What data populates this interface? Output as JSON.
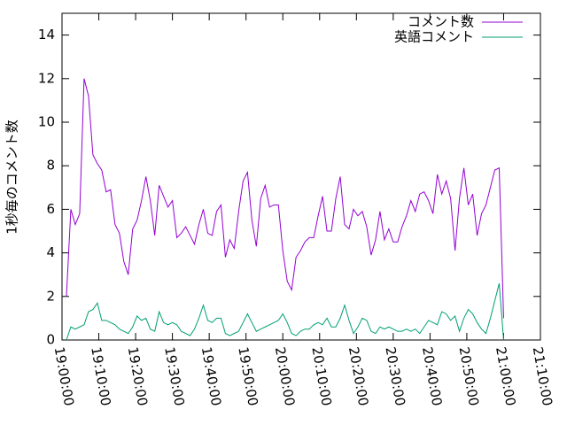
{
  "chart_data": {
    "type": "line",
    "ylabel": "1秒毎のコメント数",
    "x": [
      "19:01:12",
      "19:02:24",
      "19:03:36",
      "19:04:48",
      "19:06:00",
      "19:07:12",
      "19:08:24",
      "19:09:36",
      "19:10:48",
      "19:12:00",
      "19:13:12",
      "19:14:24",
      "19:15:36",
      "19:16:48",
      "19:18:00",
      "19:19:12",
      "19:20:24",
      "19:21:36",
      "19:22:48",
      "19:24:00",
      "19:25:12",
      "19:26:24",
      "19:27:36",
      "19:28:48",
      "19:30:00",
      "19:31:12",
      "19:32:24",
      "19:33:36",
      "19:34:48",
      "19:36:00",
      "19:37:12",
      "19:38:24",
      "19:39:36",
      "19:40:48",
      "19:42:00",
      "19:43:12",
      "19:44:24",
      "19:45:36",
      "19:46:48",
      "19:48:00",
      "19:49:12",
      "19:50:24",
      "19:51:36",
      "19:52:48",
      "19:54:00",
      "19:55:12",
      "19:56:24",
      "19:57:36",
      "19:58:48",
      "20:00:00",
      "20:01:12",
      "20:02:24",
      "20:03:36",
      "20:04:48",
      "20:06:00",
      "20:07:12",
      "20:08:24",
      "20:09:36",
      "20:10:48",
      "20:12:00",
      "20:13:12",
      "20:14:24",
      "20:15:36",
      "20:16:48",
      "20:18:00",
      "20:19:12",
      "20:20:24",
      "20:21:36",
      "20:22:48",
      "20:24:00",
      "20:25:12",
      "20:26:24",
      "20:27:36",
      "20:28:48",
      "20:30:00",
      "20:31:12",
      "20:32:24",
      "20:33:36",
      "20:34:48",
      "20:36:00",
      "20:37:12",
      "20:38:24",
      "20:39:36",
      "20:40:48",
      "20:42:00",
      "20:43:12",
      "20:44:24",
      "20:45:36",
      "20:46:48",
      "20:48:00",
      "20:49:12",
      "20:50:24",
      "20:51:36",
      "20:52:48",
      "20:54:00",
      "20:55:12",
      "20:56:24",
      "20:57:36",
      "20:58:48",
      "21:00:00"
    ],
    "series": [
      {
        "name": "コメント数",
        "color": "#9400d3",
        "values": [
          2.0,
          6.0,
          5.3,
          5.8,
          12.0,
          11.2,
          8.5,
          8.1,
          7.8,
          6.8,
          6.9,
          5.3,
          4.9,
          3.6,
          3.0,
          5.1,
          5.5,
          6.4,
          7.5,
          6.4,
          4.8,
          7.1,
          6.6,
          6.1,
          6.4,
          4.7,
          4.9,
          5.2,
          4.8,
          4.4,
          5.3,
          6.0,
          4.9,
          4.8,
          5.9,
          6.2,
          3.8,
          4.6,
          4.2,
          5.9,
          7.3,
          7.7,
          5.5,
          4.3,
          6.5,
          7.1,
          6.1,
          6.2,
          6.2,
          4.1,
          2.7,
          2.3,
          3.8,
          4.1,
          4.5,
          4.7,
          4.7,
          5.7,
          6.6,
          5.0,
          5.0,
          6.5,
          7.5,
          5.3,
          5.1,
          6.0,
          5.7,
          5.9,
          5.2,
          3.9,
          4.6,
          5.9,
          4.6,
          5.1,
          4.5,
          4.5,
          5.2,
          5.7,
          6.4,
          5.9,
          6.7,
          6.8,
          6.4,
          5.8,
          7.6,
          6.7,
          7.3,
          6.5,
          4.1,
          6.5,
          7.9,
          6.2,
          6.7,
          4.8,
          5.8,
          6.2,
          7.0,
          7.8,
          7.9,
          1.0
        ]
      },
      {
        "name": "英語コメント",
        "color": "#009e73",
        "values": [
          0.0,
          0.6,
          0.5,
          0.6,
          0.7,
          1.3,
          1.4,
          1.7,
          0.9,
          0.9,
          0.8,
          0.7,
          0.5,
          0.4,
          0.3,
          0.6,
          1.1,
          0.9,
          1.0,
          0.5,
          0.4,
          1.3,
          0.8,
          0.7,
          0.8,
          0.7,
          0.4,
          0.3,
          0.2,
          0.5,
          1.0,
          1.6,
          0.9,
          0.8,
          1.0,
          1.0,
          0.3,
          0.2,
          0.3,
          0.4,
          0.8,
          1.2,
          0.8,
          0.4,
          0.5,
          0.6,
          0.7,
          0.8,
          0.9,
          1.2,
          0.8,
          0.3,
          0.2,
          0.4,
          0.5,
          0.5,
          0.7,
          0.8,
          0.7,
          1.0,
          0.6,
          0.6,
          1.0,
          1.6,
          0.9,
          0.3,
          0.6,
          1.0,
          0.9,
          0.4,
          0.3,
          0.6,
          0.5,
          0.6,
          0.5,
          0.4,
          0.4,
          0.5,
          0.4,
          0.5,
          0.3,
          0.6,
          0.9,
          0.8,
          0.7,
          1.3,
          1.2,
          0.9,
          1.1,
          0.4,
          1.0,
          1.4,
          1.2,
          0.8,
          0.5,
          0.3,
          1.0,
          1.8,
          2.6,
          0.0
        ]
      }
    ],
    "xlim": [
      "19:00:00",
      "21:10:00"
    ],
    "xticks": [
      "19:00:00",
      "19:10:00",
      "19:20:00",
      "19:30:00",
      "19:40:00",
      "19:50:00",
      "20:00:00",
      "20:10:00",
      "20:20:00",
      "20:30:00",
      "20:40:00",
      "20:50:00",
      "21:00:00",
      "21:10:00"
    ],
    "ylim": [
      0,
      15
    ],
    "yticks": [
      0,
      2,
      4,
      6,
      8,
      10,
      12,
      14
    ],
    "legend": "top-right",
    "grid": false
  }
}
